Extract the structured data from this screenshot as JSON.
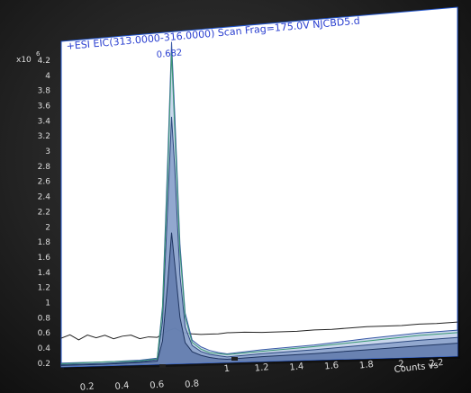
{
  "chart_data": {
    "type": "area",
    "title": "+ESI EIC(313.0000-316.0000) Scan Frag=175.0V NJCBD5.d",
    "peak_label": "0.682",
    "y_multiplier": "x10",
    "y_exponent": "6",
    "xlabel": "Counts vs. Acquisition Time (min)",
    "xlabel_visible": "Counts vs",
    "x_ticks": [
      "0.2",
      "0.4",
      "0.6",
      "0.8",
      "1",
      "1.2",
      "1.4",
      "1.6",
      "1.8",
      "2",
      "2.2"
    ],
    "y_ticks": [
      "0.2",
      "0.4",
      "0.6",
      "0.8",
      "1",
      "1.2",
      "1.4",
      "1.6",
      "1.8",
      "2",
      "2.2",
      "2.4",
      "2.6",
      "2.8",
      "3",
      "3.2",
      "3.4",
      "3.6",
      "3.8",
      "4",
      "4.2"
    ],
    "xlim": [
      0.05,
      2.32
    ],
    "ylim": [
      0.15,
      4.45
    ],
    "colors": {
      "background": "#ffffff",
      "frame": "#2255cc",
      "axis_text": "#dddddd",
      "title_text": "#2a3fd0",
      "fill_light": "#b7c8e6",
      "fill_mid": "#7f98c6",
      "fill_dark": "#5b76a8"
    },
    "series": [
      {
        "color": "#222222",
        "filled": false,
        "x": [
          0.05,
          0.1,
          0.15,
          0.2,
          0.25,
          0.3,
          0.35,
          0.4,
          0.45,
          0.5,
          0.55,
          0.6,
          0.65,
          0.7,
          0.75,
          0.8,
          0.85,
          0.9,
          0.95,
          1.0,
          1.1,
          1.2,
          1.3,
          1.4,
          1.5,
          1.6,
          1.7,
          1.8,
          1.9,
          2.0,
          2.1,
          2.2,
          2.32
        ],
        "y": [
          0.53,
          0.57,
          0.5,
          0.56,
          0.52,
          0.55,
          0.5,
          0.53,
          0.54,
          0.49,
          0.51,
          0.5,
          0.57,
          0.61,
          0.55,
          0.53,
          0.52,
          0.52,
          0.52,
          0.53,
          0.53,
          0.52,
          0.52,
          0.52,
          0.53,
          0.53,
          0.54,
          0.55,
          0.55,
          0.55,
          0.56,
          0.56,
          0.57
        ]
      },
      {
        "color": "#3a5aa6",
        "filled": true,
        "fill": "#b7c8e6",
        "x": [
          0.05,
          0.3,
          0.5,
          0.6,
          0.63,
          0.66,
          0.682,
          0.7,
          0.73,
          0.76,
          0.8,
          0.85,
          0.9,
          0.95,
          1.0,
          1.2,
          1.5,
          1.8,
          2.1,
          2.32
        ],
        "y": [
          0.2,
          0.2,
          0.21,
          0.23,
          0.9,
          2.8,
          4.32,
          3.4,
          1.7,
          0.8,
          0.45,
          0.36,
          0.31,
          0.28,
          0.26,
          0.3,
          0.34,
          0.4,
          0.45,
          0.47
        ]
      },
      {
        "color": "#2e4a80",
        "filled": true,
        "fill": "#7f98c6",
        "x": [
          0.05,
          0.3,
          0.5,
          0.6,
          0.63,
          0.66,
          0.682,
          0.7,
          0.73,
          0.76,
          0.8,
          0.85,
          0.9,
          0.95,
          1.0,
          1.2,
          1.5,
          1.8,
          2.1,
          2.32
        ],
        "y": [
          0.18,
          0.18,
          0.19,
          0.21,
          0.7,
          2.2,
          3.35,
          2.7,
          1.3,
          0.62,
          0.38,
          0.3,
          0.26,
          0.24,
          0.22,
          0.25,
          0.28,
          0.32,
          0.36,
          0.38
        ]
      },
      {
        "color": "#1f3560",
        "filled": true,
        "fill": "#5b76a8",
        "x": [
          0.05,
          0.3,
          0.5,
          0.6,
          0.63,
          0.66,
          0.682,
          0.7,
          0.73,
          0.76,
          0.8,
          0.85,
          0.9,
          0.95,
          1.0,
          1.2,
          1.5,
          1.8,
          2.1,
          2.32
        ],
        "y": [
          0.17,
          0.17,
          0.18,
          0.19,
          0.45,
          1.2,
          1.85,
          1.45,
          0.75,
          0.42,
          0.3,
          0.25,
          0.22,
          0.2,
          0.19,
          0.21,
          0.23,
          0.26,
          0.29,
          0.31
        ]
      },
      {
        "color": "#3b9a74",
        "filled": false,
        "x": [
          0.05,
          0.3,
          0.5,
          0.6,
          0.63,
          0.66,
          0.682,
          0.7,
          0.73,
          0.76,
          0.8,
          0.85,
          0.9,
          1.0,
          1.2,
          1.5,
          1.8,
          2.1,
          2.32
        ],
        "y": [
          0.19,
          0.2,
          0.2,
          0.22,
          0.85,
          2.6,
          4.18,
          3.2,
          1.6,
          0.75,
          0.42,
          0.33,
          0.28,
          0.25,
          0.28,
          0.32,
          0.37,
          0.42,
          0.44
        ]
      }
    ]
  }
}
